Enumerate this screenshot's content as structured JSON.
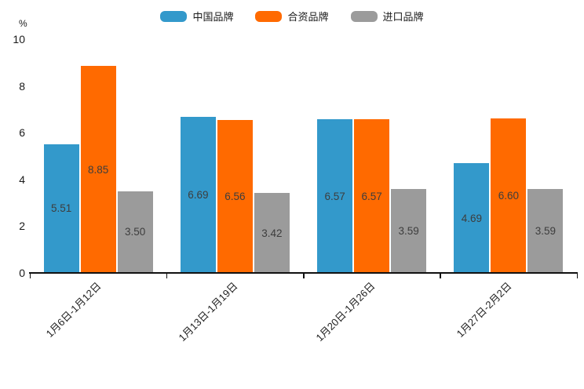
{
  "chart_data": {
    "type": "bar",
    "title": "",
    "xlabel": "",
    "ylabel": "%",
    "ylim": [
      0,
      10
    ],
    "yticks": [
      0,
      2,
      4,
      6,
      8,
      10
    ],
    "grid": false,
    "legend_position": "top",
    "categories": [
      "1月6日-1月12日",
      "1月13日-1月19日",
      "1月20日-1月26日",
      "1月27日-2月2日"
    ],
    "series": [
      {
        "name": "中国品牌",
        "color": "#3399CB",
        "values": [
          5.51,
          6.69,
          6.57,
          4.69
        ]
      },
      {
        "name": "合资品牌",
        "color": "#FF6A00",
        "values": [
          8.85,
          6.56,
          6.57,
          6.6
        ]
      },
      {
        "name": "进口品牌",
        "color": "#9B9B9B",
        "values": [
          3.5,
          3.42,
          3.59,
          3.59
        ]
      }
    ],
    "value_label_decimals": 2,
    "axis_color": "#111111"
  }
}
